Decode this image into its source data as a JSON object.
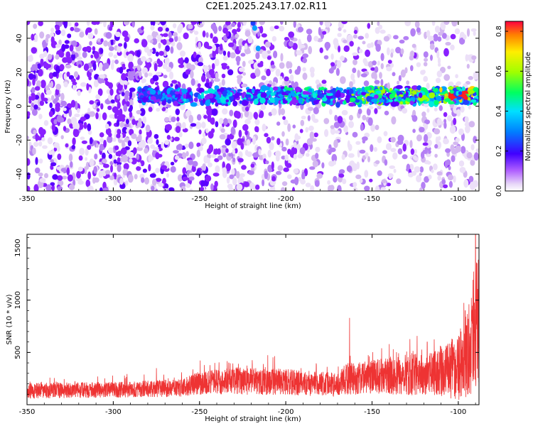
{
  "title": "C2E1.2025.243.17.02.R11",
  "colors": {
    "snr_line": "#ee3333",
    "blob_purple": "#7f00ff",
    "blob_light": "#d8b8f0",
    "axis": "#000000",
    "background": "#ffffff"
  },
  "chart_data": [
    {
      "type": "heatmap",
      "title": "C2E1.2025.243.17.02.R11",
      "xlabel": "Height of straight line (km)",
      "ylabel": "Frequency (Hz)",
      "xlim": [
        -350,
        -88
      ],
      "ylim": [
        -50,
        50
      ],
      "xticks": [
        -350,
        -300,
        -250,
        -200,
        -150,
        -100
      ],
      "yticks": [
        -40,
        -20,
        0,
        20,
        40
      ],
      "colorbar": {
        "label": "Normalized spectral amplitude",
        "range": [
          0,
          0.85
        ],
        "ticks": [
          0.0,
          0.2,
          0.4,
          0.6,
          0.8
        ],
        "colormap": "rainbow (white-purple-blue-cyan-green-yellow-red)"
      },
      "features": {
        "signal_band_frequency_hz": [
          2,
          10
        ],
        "signal_band_height_km": [
          -285,
          -88
        ],
        "peak_amplitude": 0.85,
        "peak_height_km": -98,
        "peak_frequency_hz": 6
      }
    },
    {
      "type": "line",
      "xlabel": "Height of straight line (km)",
      "ylabel": "SNR (10 * v/v)",
      "xlim": [
        -350,
        -88
      ],
      "ylim": [
        0,
        1630
      ],
      "xticks": [
        -350,
        -300,
        -250,
        -200,
        -150,
        -100
      ],
      "yticks": [
        500,
        1000,
        1500
      ],
      "series": [
        {
          "name": "SNR",
          "envelope": {
            "x": [
              -350,
              -300,
              -260,
              -250,
              -230,
              -200,
              -170,
              -165,
              -150,
              -130,
              -110,
              -100,
              -95,
              -90,
              -88
            ],
            "baseline": [
              140,
              150,
              170,
              220,
              240,
              230,
              200,
              260,
              280,
              300,
              330,
              400,
              520,
              700,
              750
            ],
            "spread": [
              150,
              150,
              170,
              220,
              260,
              250,
              230,
              300,
              330,
              380,
              450,
              650,
              850,
              1000,
              1050
            ]
          },
          "notable_peaks": [
            {
              "x": -275,
              "y": 350
            },
            {
              "x": -233,
              "y": 400
            },
            {
              "x": -213,
              "y": 390
            },
            {
              "x": -163,
              "y": 830
            },
            {
              "x": -140,
              "y": 580
            },
            {
              "x": -118,
              "y": 600
            },
            {
              "x": -96,
              "y": 900
            },
            {
              "x": -90,
              "y": 1630
            }
          ]
        }
      ]
    }
  ]
}
